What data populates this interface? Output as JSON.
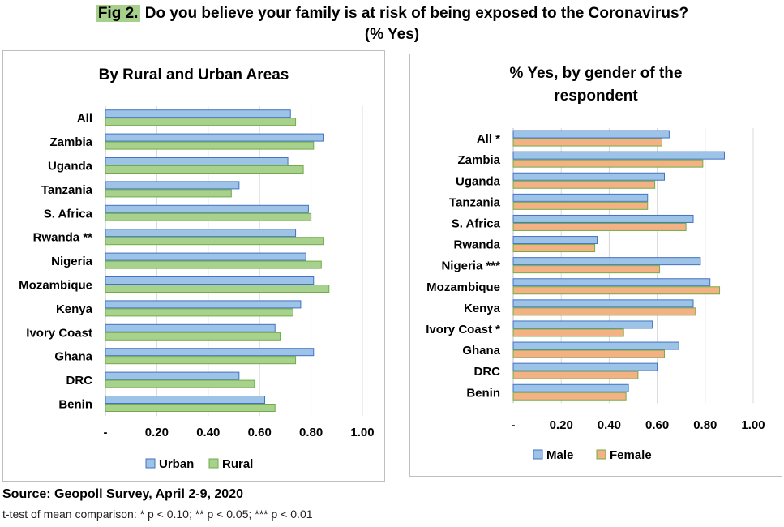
{
  "header": {
    "label": "Fig 2.",
    "title_line1": "Do you believe your family is at risk of being exposed to the Coronavirus?",
    "title_line2": "(% Yes)"
  },
  "footer": {
    "source": "Source: Geopoll Survey, April 2-9, 2020",
    "note": "t-test of mean comparison: * p < 0.10; ** p < 0.05; *** p < 0.01"
  },
  "colors": {
    "urban_fill": "#9dc3e6",
    "urban_stroke": "#4472c4",
    "rural_fill": "#a9d18e",
    "rural_stroke": "#70ad47",
    "male_fill": "#9dc3e6",
    "male_stroke": "#4472c4",
    "female_fill": "#f4b183",
    "female_stroke": "#70ad47",
    "grid": "#d9d9d9"
  },
  "chart_data": [
    {
      "type": "bar",
      "orientation": "horizontal",
      "title": "By Rural and Urban Areas",
      "categories": [
        "All",
        "Zambia",
        "Uganda",
        "Tanzania",
        "S. Africa",
        "Rwanda **",
        "Nigeria",
        "Mozambique",
        "Kenya",
        "Ivory Coast",
        "Ghana",
        "DRC",
        "Benin"
      ],
      "series": [
        {
          "name": "Urban",
          "values": [
            0.72,
            0.85,
            0.71,
            0.52,
            0.79,
            0.74,
            0.78,
            0.81,
            0.76,
            0.66,
            0.81,
            0.52,
            0.62
          ]
        },
        {
          "name": "Rural",
          "values": [
            0.74,
            0.81,
            0.77,
            0.49,
            0.8,
            0.85,
            0.84,
            0.87,
            0.73,
            0.68,
            0.74,
            0.58,
            0.66
          ]
        }
      ],
      "xlim": [
        0,
        1.0
      ],
      "xticks": [
        "-",
        "0.20",
        "0.40",
        "0.60",
        "0.80",
        "1.00"
      ],
      "legend": "bottom",
      "grid": true
    },
    {
      "type": "bar",
      "orientation": "horizontal",
      "title_line1": "% Yes, by gender of the",
      "title_line2": "respondent",
      "categories": [
        "All *",
        "Zambia",
        "Uganda",
        "Tanzania",
        "S. Africa",
        "Rwanda",
        "Nigeria ***",
        "Mozambique",
        "Kenya",
        "Ivory Coast *",
        "Ghana",
        "DRC",
        "Benin"
      ],
      "series": [
        {
          "name": "Male",
          "values": [
            0.65,
            0.88,
            0.63,
            0.56,
            0.75,
            0.35,
            0.78,
            0.82,
            0.75,
            0.58,
            0.69,
            0.6,
            0.48
          ]
        },
        {
          "name": "Female",
          "values": [
            0.62,
            0.79,
            0.59,
            0.56,
            0.72,
            0.34,
            0.61,
            0.86,
            0.76,
            0.46,
            0.63,
            0.52,
            0.47
          ]
        }
      ],
      "xlim": [
        0,
        1.0
      ],
      "xticks": [
        "-",
        "0.20",
        "0.40",
        "0.60",
        "0.80",
        "1.00"
      ],
      "legend": "bottom",
      "grid": true
    }
  ]
}
